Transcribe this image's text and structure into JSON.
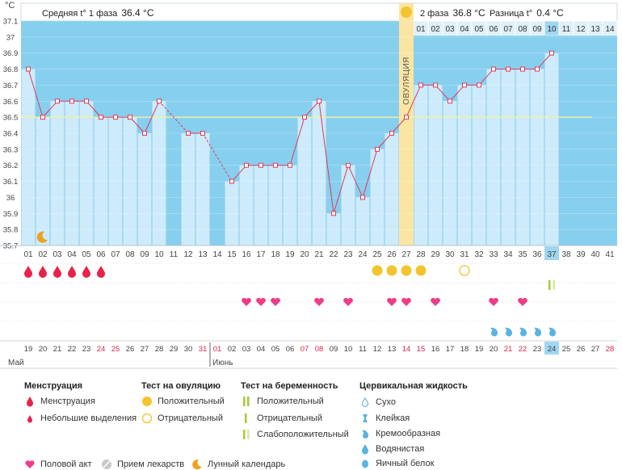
{
  "header": {
    "unit": "°C",
    "phase1_label": "Средняя t° 1 фаза",
    "phase1_value": "36.4 °C",
    "phase2_label": "2 фаза",
    "phase2_value": "36.8 °C",
    "diff_label": "Разница t°",
    "diff_value": "0.4 °C",
    "ovulation_label": "ОВУЛЯЦИЯ"
  },
  "chart_data": {
    "type": "line",
    "ylim": [
      35.7,
      37.1
    ],
    "y_ticks": [
      "37.1",
      "37",
      "36.9",
      "36.8",
      "36.7",
      "36.6",
      "36.5",
      "36.4",
      "36.3",
      "36.2",
      "36.1",
      "36",
      "35.9",
      "35.8",
      "35.7"
    ],
    "coverline": 36.5,
    "cycle_days": [
      "01",
      "02",
      "03",
      "04",
      "05",
      "06",
      "07",
      "08",
      "09",
      "10",
      "11",
      "12",
      "13",
      "14",
      "15",
      "16",
      "17",
      "18",
      "19",
      "20",
      "21",
      "22",
      "23",
      "24",
      "25",
      "26",
      "27",
      "28",
      "29",
      "30",
      "31",
      "32",
      "33",
      "34",
      "35",
      "36",
      "37",
      "38",
      "39",
      "40",
      "41"
    ],
    "phase2_day_labels": [
      "01",
      "02",
      "03",
      "04",
      "05",
      "06",
      "07",
      "08",
      "09",
      "10",
      "11",
      "12",
      "13",
      "14"
    ],
    "temperatures": [
      36.8,
      36.5,
      36.6,
      36.6,
      36.6,
      36.5,
      36.5,
      36.5,
      36.4,
      36.6,
      null,
      36.4,
      36.4,
      null,
      36.1,
      36.2,
      36.2,
      36.2,
      36.2,
      36.5,
      36.6,
      35.9,
      36.2,
      36.0,
      36.3,
      36.4,
      36.5,
      36.7,
      36.7,
      36.6,
      36.7,
      36.7,
      36.8,
      36.8,
      36.8,
      36.8,
      36.9,
      null,
      null,
      null,
      null
    ],
    "ovulation_day": 27,
    "current_day": 37,
    "dates": [
      "19",
      "20",
      "21",
      "22",
      "23",
      "24",
      "25",
      "26",
      "27",
      "28",
      "29",
      "30",
      "31",
      "01",
      "02",
      "03",
      "04",
      "05",
      "06",
      "07",
      "08",
      "09",
      "10",
      "11",
      "12",
      "13",
      "14",
      "15",
      "16",
      "17",
      "18",
      "19",
      "20",
      "21",
      "22",
      "23",
      "24",
      "25",
      "26",
      "27",
      "28"
    ],
    "weekend_days": [
      6,
      7,
      13,
      14,
      20,
      21,
      27,
      28,
      34,
      35,
      41
    ],
    "months": [
      {
        "label": "Май",
        "start_day": 1
      },
      {
        "label": "Июнь",
        "start_day": 14
      }
    ],
    "menstruation_days": [
      1,
      2,
      3,
      4,
      5,
      6
    ],
    "ovulation_test_positive_days": [
      25,
      26,
      27,
      28
    ],
    "ovulation_test_negative_days": [
      31
    ],
    "pregnancy_test_days": [
      37
    ],
    "intercourse_days": [
      16,
      17,
      18,
      21,
      23,
      26,
      27,
      29,
      33,
      35
    ],
    "cervical_fluid_days": [
      33,
      34,
      35,
      36,
      37
    ],
    "moon_day": 2
  },
  "legend": {
    "menstruation": {
      "title": "Менструация",
      "items": [
        "Менструация",
        "Небольшие выделения"
      ]
    },
    "ovulation_test": {
      "title": "Тест на овуляцию",
      "items": [
        "Положительный",
        "Отрицательный"
      ]
    },
    "pregnancy_test": {
      "title": "Тест на беременность",
      "items": [
        "Положительный",
        "Отрицательный",
        "Слабоположительный"
      ]
    },
    "cervical": {
      "title": "Цервикальная жидкость",
      "items": [
        "Сухо",
        "Клейкая",
        "Кремообразная",
        "Водянистая",
        "Яичный белок"
      ]
    },
    "bottom": [
      "Половой акт",
      "Прием лекарств",
      "Лунный календарь"
    ]
  },
  "colors": {
    "plot_bg": "#87cfee",
    "bar": "#cdebfa",
    "bar_edge": "#a9d9f0",
    "line": "#e03a5d",
    "ovulation": "#fbe5a3",
    "coverline": "#f5f0a0",
    "drop": "#e8224a",
    "heart": "#ee3d86",
    "sun": "#f3c42e",
    "pregnancy": "#a7c93a",
    "cervical": "#5ab3e0",
    "weekend": "#d9264c",
    "current": "#9fd6f2"
  }
}
